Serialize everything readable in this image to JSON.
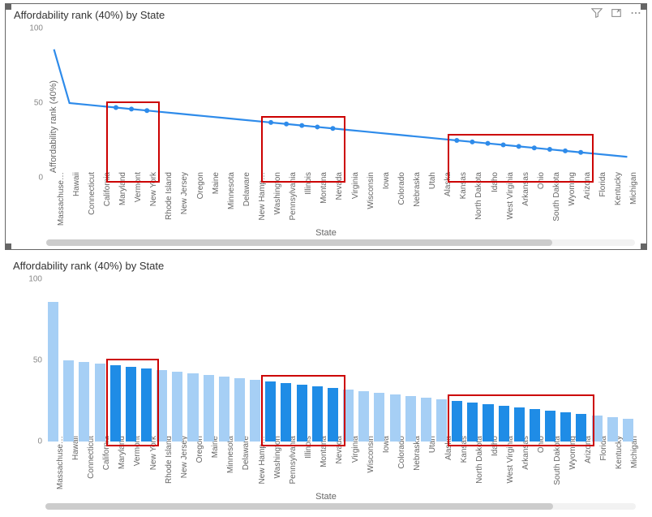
{
  "title": "Affordability rank (40%) by State",
  "ylabel": "Affordability rank (40%)",
  "xlabel": "State",
  "ylim": [
    0,
    100
  ],
  "yticks": [
    0,
    50,
    100
  ],
  "line_color": "#2e8bea",
  "marker_color": "#2e8bea",
  "marker_radius": 3,
  "line_width": 2.2,
  "bar_color_light": "#a6cff5",
  "bar_color_dark": "#1f8ce6",
  "highlight_color": "#cc0000",
  "highlight_width": 2,
  "highlight_ranges": [
    [
      4,
      6
    ],
    [
      14,
      18
    ],
    [
      26,
      34
    ]
  ],
  "scrollbar_track": "#f2f2f2",
  "scrollbar_thumb": "#cccccc",
  "scrollbar_thumb_pct": 86,
  "toolbar_icons": [
    "filter-icon",
    "focus-icon",
    "more-icon"
  ],
  "states": [
    "Massachuse…",
    "Hawaii",
    "Connecticut",
    "California",
    "Maryland",
    "Vermont",
    "New York",
    "Rhode Island",
    "New Jersey",
    "Oregon",
    "Maine",
    "Minnesota",
    "Delaware",
    "New Hamp…",
    "Washington",
    "Pennsylvania",
    "Illinois",
    "Montana",
    "Nevada",
    "Virginia",
    "Wisconsin",
    "Iowa",
    "Colorado",
    "Nebraska",
    "Utah",
    "Alaska",
    "Kansas",
    "North Dakota",
    "Idaho",
    "West Virginia",
    "Arkansas",
    "Ohio",
    "South Dakota",
    "Wyoming",
    "Arizona",
    "Florida",
    "Kentucky",
    "Michigan"
  ],
  "values": [
    86,
    50,
    49,
    48,
    47,
    46,
    45,
    44,
    43,
    42,
    41,
    40,
    39,
    38,
    37,
    36,
    35,
    34,
    33,
    32,
    31,
    30,
    29,
    28,
    27,
    26,
    25,
    24,
    23,
    22,
    21,
    20,
    19,
    18,
    17,
    16,
    15,
    14
  ]
}
